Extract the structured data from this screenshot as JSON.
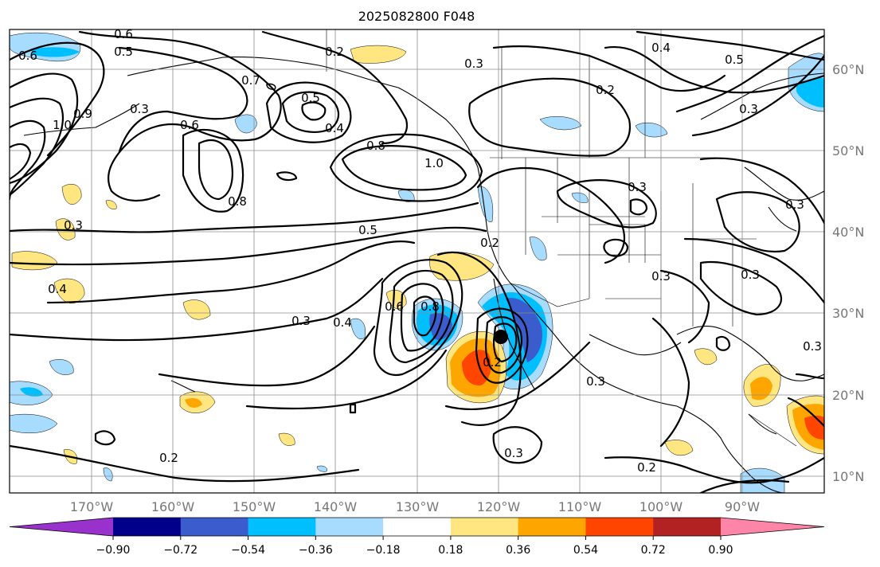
{
  "title": "2025082800 F048",
  "lat_labels": [
    "60°N",
    "50°N",
    "40°N",
    "30°N",
    "20°N",
    "10°N"
  ],
  "lon_labels": [
    "170°W",
    "160°W",
    "150°W",
    "140°W",
    "130°W",
    "120°W",
    "110°W",
    "100°W",
    "90°W"
  ],
  "colorbar": {
    "ticks": [
      "−0.90",
      "−0.72",
      "−0.54",
      "−0.36",
      "−0.18",
      "0.18",
      "0.36",
      "0.54",
      "0.72",
      "0.90"
    ],
    "colors": [
      "#9932cc",
      "#00008b",
      "#3a5ccc",
      "#00bfff",
      "#a8dcff",
      "#ffffff",
      "#ffe680",
      "#ffa500",
      "#ff4500",
      "#b22222",
      "#ff85a8"
    ]
  },
  "contour_labels": [
    "0.6",
    "0.5",
    "0.6",
    "1.0",
    "0.9",
    "0.3",
    "0.7",
    "0.5",
    "0.6",
    "0.4",
    "0.8",
    "1.0",
    "0.8",
    "0.2",
    "0.3",
    "0.4",
    "0.5",
    "0.2",
    "0.3",
    "0.3",
    "0.5",
    "0.3",
    "0.2",
    "0.3",
    "0.3",
    "0.4",
    "0.6",
    "0.8",
    "0.2",
    "0.3",
    "0.4",
    "0.3",
    "0.2",
    "0.3",
    "0.3",
    "0.2",
    "0.3"
  ],
  "storm_marker": "storm-center"
}
